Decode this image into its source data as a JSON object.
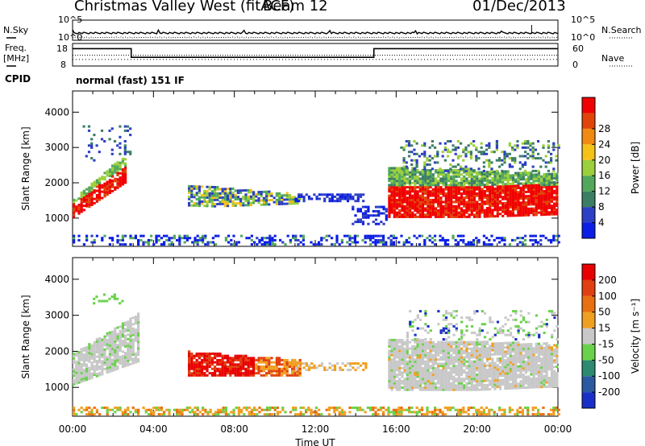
{
  "header": {
    "station": "Christmas Valley West (fitACF)",
    "beam": "Beam 12",
    "date": "01/Dec/2013"
  },
  "aux_panels": {
    "nsky": {
      "label": "N.Sky",
      "ticks": [
        "10^5",
        "10^0"
      ]
    },
    "nsearch": {
      "label": "N.Search",
      "ticks": [
        "10^5",
        "10^0"
      ]
    },
    "freq": {
      "label_top": "Freq.",
      "label_bottom": "[MHz]",
      "ticks": [
        "18",
        "8"
      ]
    },
    "nave": {
      "label": "Nave",
      "ticks": [
        "60",
        "0"
      ]
    },
    "cpid": {
      "label": "CPID",
      "mode_text": "normal (fast) 151 IF"
    }
  },
  "chart_data": [
    {
      "type": "heatmap",
      "name": "power",
      "ylabel": "Slant Range [km]",
      "xlabel": "",
      "yticks": [
        1000,
        2000,
        3000,
        4000
      ],
      "ylim": [
        200,
        4600
      ],
      "xlim": [
        0,
        24
      ],
      "colorbar": {
        "label": "Power [dB]",
        "ticks": [
          4,
          8,
          12,
          16,
          20,
          24,
          28
        ],
        "colors": [
          "#0a1ee6",
          "#2d3fc4",
          "#3b7e64",
          "#52a85a",
          "#9ccf3c",
          "#f5c218",
          "#f08a10",
          "#e04408",
          "#f00000"
        ]
      }
    },
    {
      "type": "heatmap",
      "name": "velocity",
      "ylabel": "Slant Range [km]",
      "xlabel": "Time UT",
      "yticks": [
        1000,
        2000,
        3000,
        4000
      ],
      "ylim": [
        200,
        4600
      ],
      "xlim": [
        0,
        24
      ],
      "xticklabels": [
        "00:00",
        "04:00",
        "08:00",
        "12:00",
        "16:00",
        "20:00",
        "00:00"
      ],
      "colorbar": {
        "label": "Velocity [m s⁻¹]",
        "ticks": [
          200,
          100,
          50,
          15,
          -15,
          -50,
          -100,
          -200
        ],
        "colors": [
          "#1830c8",
          "#2c5aa0",
          "#2c8a70",
          "#6ad24a",
          "#c8c8c8",
          "#f0a020",
          "#e87010",
          "#e04010",
          "#e80000"
        ]
      }
    }
  ]
}
